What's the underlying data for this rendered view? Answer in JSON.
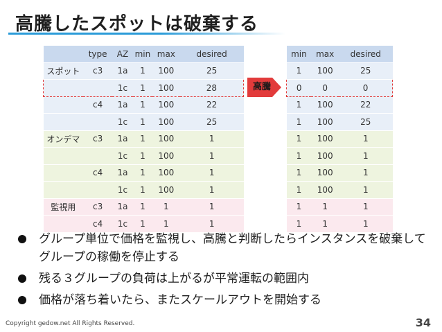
{
  "slide": {
    "title": "高騰したスポットは破棄する",
    "arrow_label": "高騰",
    "footer": "Copyright gedow.net All Rights Reserved.",
    "page_number": "34"
  },
  "left_table": {
    "headers": [
      "",
      "type",
      "AZ",
      "min",
      "max",
      "desired"
    ],
    "rows": [
      {
        "group": "スポット",
        "type": "c3",
        "az": "1a",
        "min": "1",
        "max": "100",
        "desired": "25",
        "style": "g-spot",
        "dashed": false
      },
      {
        "group": "",
        "type": "",
        "az": "1c",
        "min": "1",
        "max": "100",
        "desired": "28",
        "style": "g-spot",
        "dashed": true
      },
      {
        "group": "",
        "type": "c4",
        "az": "1a",
        "min": "1",
        "max": "100",
        "desired": "22",
        "style": "g-spot",
        "dashed": false
      },
      {
        "group": "",
        "type": "",
        "az": "1c",
        "min": "1",
        "max": "100",
        "desired": "25",
        "style": "g-spot",
        "dashed": false
      },
      {
        "group": "オンデマ",
        "type": "c3",
        "az": "1a",
        "min": "1",
        "max": "100",
        "desired": "1",
        "style": "g-ondemand",
        "dashed": false
      },
      {
        "group": "",
        "type": "",
        "az": "1c",
        "min": "1",
        "max": "100",
        "desired": "1",
        "style": "g-ondemand",
        "dashed": false
      },
      {
        "group": "",
        "type": "c4",
        "az": "1a",
        "min": "1",
        "max": "100",
        "desired": "1",
        "style": "g-ondemand",
        "dashed": false
      },
      {
        "group": "",
        "type": "",
        "az": "1c",
        "min": "1",
        "max": "100",
        "desired": "1",
        "style": "g-ondemand",
        "dashed": false
      },
      {
        "group": "監視用",
        "type": "c3",
        "az": "1a",
        "min": "1",
        "max": "1",
        "desired": "1",
        "style": "g-monitor",
        "dashed": false
      },
      {
        "group": "",
        "type": "c4",
        "az": "1c",
        "min": "1",
        "max": "1",
        "desired": "1",
        "style": "g-monitor",
        "dashed": false
      }
    ]
  },
  "right_table": {
    "headers": [
      "min",
      "max",
      "desired"
    ],
    "rows": [
      {
        "min": "1",
        "max": "100",
        "desired": "25",
        "style": "g-spot",
        "dashed": false
      },
      {
        "min": "0",
        "max": "0",
        "desired": "0",
        "style": "g-spot",
        "dashed": true
      },
      {
        "min": "1",
        "max": "100",
        "desired": "22",
        "style": "g-spot",
        "dashed": false
      },
      {
        "min": "1",
        "max": "100",
        "desired": "25",
        "style": "g-spot",
        "dashed": false
      },
      {
        "min": "1",
        "max": "100",
        "desired": "1",
        "style": "g-ondemand",
        "dashed": false
      },
      {
        "min": "1",
        "max": "100",
        "desired": "1",
        "style": "g-ondemand",
        "dashed": false
      },
      {
        "min": "1",
        "max": "100",
        "desired": "1",
        "style": "g-ondemand",
        "dashed": false
      },
      {
        "min": "1",
        "max": "100",
        "desired": "1",
        "style": "g-ondemand",
        "dashed": false
      },
      {
        "min": "1",
        "max": "1",
        "desired": "1",
        "style": "g-monitor",
        "dashed": false
      },
      {
        "min": "1",
        "max": "1",
        "desired": "1",
        "style": "g-monitor",
        "dashed": false
      }
    ]
  },
  "bullets": [
    "グループ単位で価格を監視し、高騰と判断したらインスタンスを破棄してグループの稼働を停止する",
    "残る３グループの負荷は上がるが平常運転の範囲内",
    "価格が落ち着いたら、またスケールアウトを開始する"
  ],
  "colors": {
    "header_bg": "#c9d9ee",
    "spot_bg": "#e8eff8",
    "ondemand_bg": "#eef4df",
    "monitor_bg": "#fbe9ee",
    "arrow_fill": "#e23b3b",
    "title_rule": "#2a9bd8"
  }
}
